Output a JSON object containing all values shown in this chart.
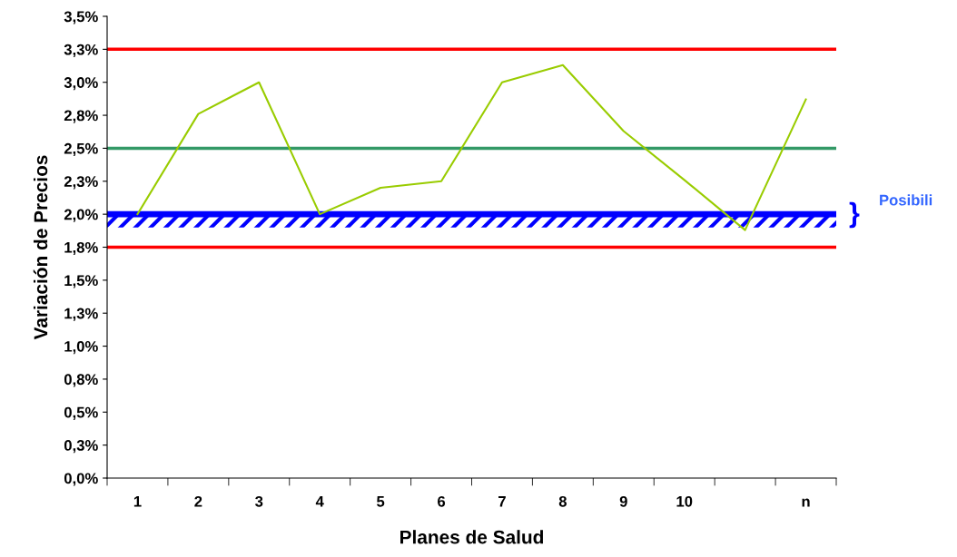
{
  "chart_data": {
    "type": "line",
    "xlabel": "Planes de Salud",
    "ylabel": "Variación de Precios",
    "categories": [
      "1",
      "2",
      "3",
      "4",
      "5",
      "6",
      "7",
      "8",
      "9",
      "10",
      null,
      "n"
    ],
    "series": [
      {
        "color": "#99cc00",
        "values": [
          2.0,
          2.76,
          3.0,
          2.0,
          2.2,
          2.25,
          3.0,
          3.13,
          2.63,
          2.26,
          1.88,
          2.87
        ]
      }
    ],
    "ylim": [
      0,
      3.5
    ],
    "yticks": [
      {
        "value": 0,
        "label": "0,0%"
      },
      {
        "value": 0.25,
        "label": "0,3%"
      },
      {
        "value": 0.5,
        "label": "0,5%"
      },
      {
        "value": 0.75,
        "label": "0,8%"
      },
      {
        "value": 1.0,
        "label": "1,0%"
      },
      {
        "value": 1.25,
        "label": "1,3%"
      },
      {
        "value": 1.5,
        "label": "1,5%"
      },
      {
        "value": 1.75,
        "label": "1,8%"
      },
      {
        "value": 2.0,
        "label": "2,0%"
      },
      {
        "value": 2.25,
        "label": "2,3%"
      },
      {
        "value": 2.5,
        "label": "2,5%"
      },
      {
        "value": 2.75,
        "label": "2,8%"
      },
      {
        "value": 3.0,
        "label": "3,0%"
      },
      {
        "value": 3.25,
        "label": "3,3%"
      },
      {
        "value": 3.5,
        "label": "3,5%"
      }
    ],
    "ref_lines": [
      {
        "axis": "y",
        "value": 3.25,
        "color": "#ff0000"
      },
      {
        "axis": "y",
        "value": 2.5,
        "color": "#339966"
      },
      {
        "axis": "y",
        "value": 2.0,
        "color": "#0000ff"
      },
      {
        "axis": "y",
        "value": 1.75,
        "color": "#ff0000"
      }
    ],
    "bands": [
      {
        "axis": "y",
        "from": 1.9,
        "to": 2.0,
        "color": "#0000ff"
      }
    ],
    "annotations": [
      "}",
      "Posibili"
    ],
    "grid": false,
    "legend": false,
    "marker": "none",
    "line_style": "solid"
  }
}
